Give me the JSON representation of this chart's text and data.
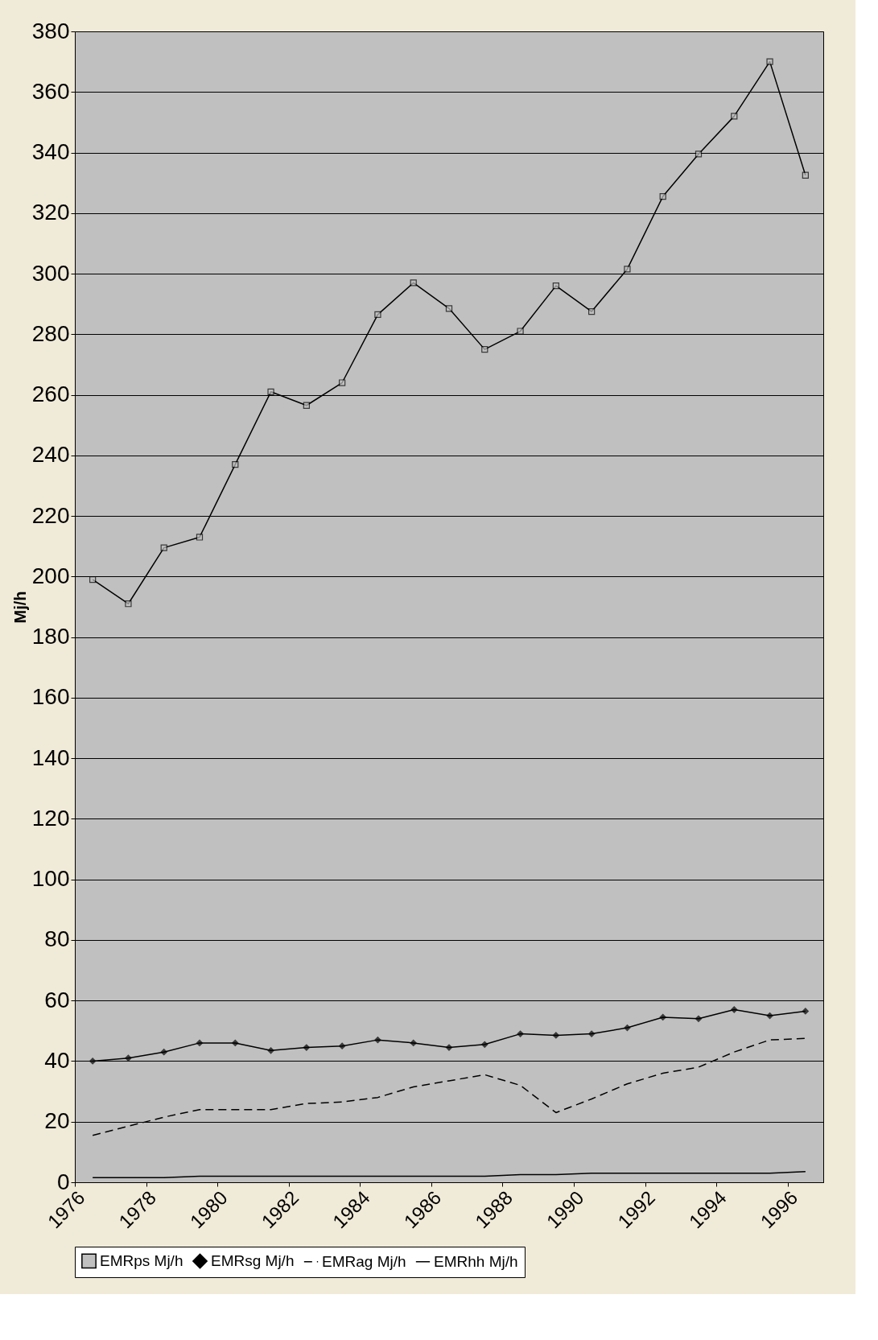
{
  "chart_data": {
    "type": "line",
    "ylabel": "Mj/h",
    "x": [
      1976.5,
      1977.5,
      1978.5,
      1979.5,
      1980.5,
      1981.5,
      1982.5,
      1983.5,
      1984.5,
      1985.5,
      1986.5,
      1987.5,
      1988.5,
      1989.5,
      1990.5,
      1991.5,
      1992.5,
      1993.5,
      1994.5,
      1995.5,
      1996.5
    ],
    "xlim": [
      1976,
      1997
    ],
    "xticks": [
      1976,
      1978,
      1980,
      1982,
      1984,
      1986,
      1988,
      1990,
      1992,
      1994,
      1996
    ],
    "ylim": [
      0,
      380
    ],
    "yticks": [
      0,
      20,
      40,
      60,
      80,
      100,
      120,
      140,
      160,
      180,
      200,
      220,
      240,
      260,
      280,
      300,
      320,
      340,
      360,
      380
    ],
    "grid": "y",
    "legend": "bottom",
    "series": [
      {
        "name": "EMRps Mj/h",
        "color": "#000000",
        "marker": "square",
        "line_style": "solid",
        "values": [
          199,
          191,
          209.5,
          213,
          237,
          261,
          256.5,
          264,
          286.5,
          297,
          288.5,
          275,
          281,
          296,
          287.5,
          301.5,
          325.5,
          339.5,
          352,
          370,
          332.5
        ]
      },
      {
        "name": "EMRsg Mj/h",
        "color": "#000000",
        "marker": "diamond",
        "line_style": "solid",
        "values": [
          40,
          41,
          43,
          46,
          46,
          43.5,
          44.5,
          45,
          47,
          46,
          44.5,
          45.5,
          49,
          48.5,
          49,
          51,
          54.5,
          54,
          57,
          55,
          56.5
        ]
      },
      {
        "name": "EMRag Mj/h",
        "color": "#000000",
        "marker": "none",
        "line_style": "dashed",
        "values": [
          15.5,
          18.5,
          21.5,
          24,
          24,
          24,
          26,
          26.5,
          28,
          31.5,
          33.5,
          35.5,
          32,
          23,
          27.5,
          32.5,
          36,
          38,
          43,
          47,
          47.5
        ]
      },
      {
        "name": "EMRhh Mj/h",
        "color": "#000000",
        "marker": "none",
        "line_style": "solid",
        "values": [
          1.5,
          1.5,
          1.5,
          2,
          2,
          2,
          2,
          2,
          2,
          2,
          2,
          2,
          2.5,
          2.5,
          3,
          3,
          3,
          3,
          3,
          3,
          3.5
        ]
      }
    ]
  }
}
